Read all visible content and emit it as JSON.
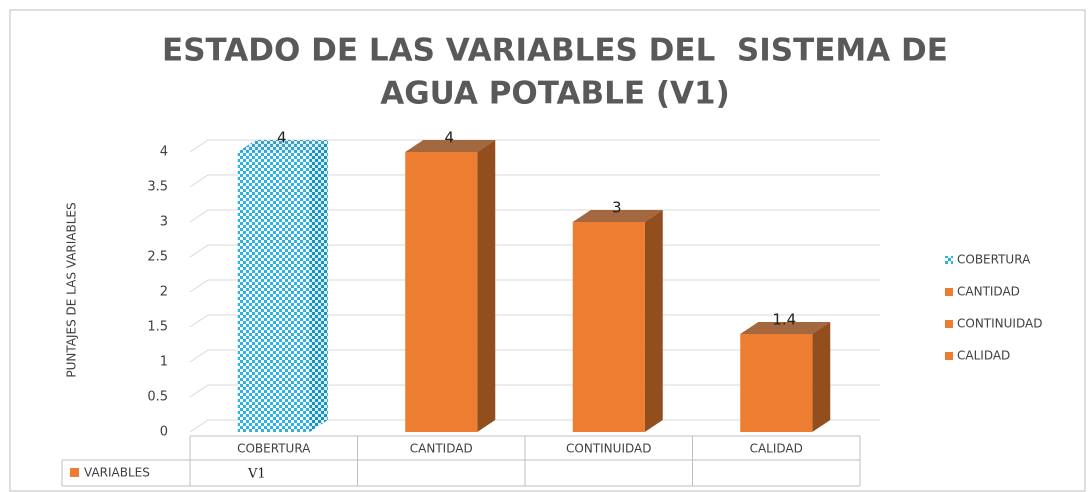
{
  "chart_data": {
    "type": "bar3d",
    "title": [
      "ESTADO DE LAS VARIABLES DEL  SISTEMA DE",
      "AGUA POTABLE (V1)"
    ],
    "y_label": "PUNTAJES DE LAS VARIABLES",
    "categories": [
      "COBERTURA",
      "CANTIDAD",
      "CONTINUIDAD",
      "CALIDAD"
    ],
    "values": [
      4,
      4,
      3,
      1.4
    ],
    "colors": [
      "#2bb3e6",
      "#ed7d31",
      "#ed7d31",
      "#ed7d31"
    ],
    "patterns": [
      "checker",
      null,
      null,
      null
    ],
    "ylim": [
      0,
      4
    ],
    "yticks": [
      0,
      0.5,
      1,
      1.5,
      2,
      2.5,
      3,
      3.5,
      4
    ],
    "grid": true,
    "legend": "right",
    "data_table": {
      "label": "VARIABLES",
      "color": "#ed7d31",
      "cells": [
        "V1"
      ]
    }
  }
}
